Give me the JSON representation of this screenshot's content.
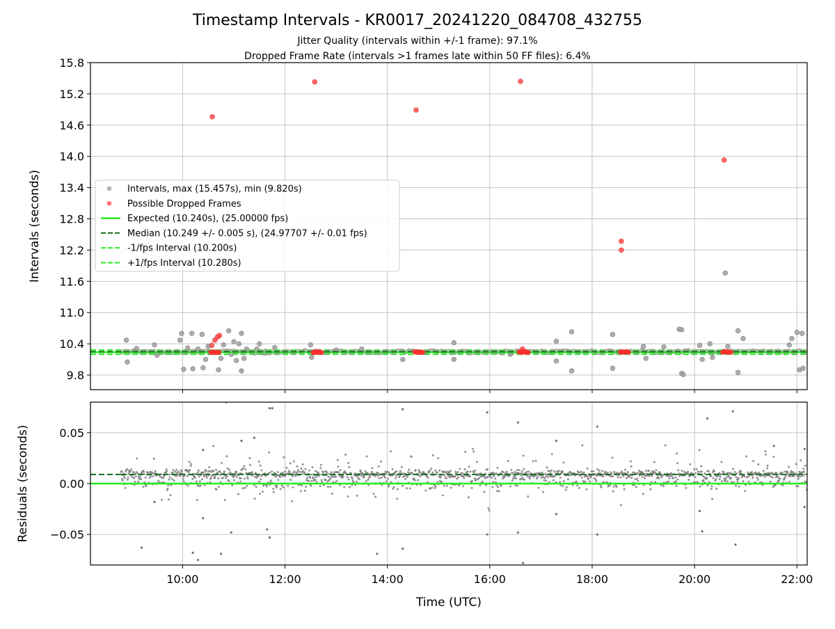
{
  "title": "Timestamp Intervals - KR0017_20241220_084708_432755",
  "subtitle_1": "Jitter Quality (intervals within +/-1 frame): 97.1%",
  "subtitle_2": "Dropped Frame Rate (intervals >1 frames late within 50 FF files): 6.4%",
  "colors": {
    "intervals": "#808080",
    "dropped": "#ff3030",
    "expected": "#22ee22",
    "median": "#1a6b1a",
    "bound": "#22ee22",
    "grid": "#b0b0b0"
  },
  "chart_data": [
    {
      "type": "scatter",
      "ylabel": "Intervals (seconds)",
      "xlim": [
        8.2,
        22.2
      ],
      "ylim": [
        9.52,
        15.8
      ],
      "yticks": [
        9.8,
        10.4,
        11.0,
        11.6,
        12.2,
        12.8,
        13.4,
        14.0,
        14.6,
        15.2,
        15.8
      ],
      "ytick_labels": [
        "9.8",
        "10.4",
        "11.0",
        "11.6",
        "12.2",
        "12.8",
        "13.4",
        "14.0",
        "14.6",
        "15.2",
        "15.8"
      ],
      "xticks": [
        10,
        12,
        14,
        16,
        18,
        20,
        22
      ],
      "grid": true,
      "legend_position": "center-left",
      "legend": [
        {
          "label": "Intervals, max (15.457s), min (9.820s)",
          "kind": "dot",
          "color": "#a0a0a0"
        },
        {
          "label": "Possible Dropped Frames",
          "kind": "dot",
          "color": "#ff5050"
        },
        {
          "label": "Expected (10.240s), (25.00000 fps)",
          "kind": "line",
          "color": "#22ee22"
        },
        {
          "label": "Median (10.249 +/- 0.005 s), (24.97707 +/- 0.01 fps)",
          "kind": "dash",
          "color": "#1a6b1a"
        },
        {
          "label": "-1/fps Interval (10.200s)",
          "kind": "dash",
          "color": "#22ee22"
        },
        {
          "label": "+1/fps Interval (10.280s)",
          "kind": "dash",
          "color": "#22ee22"
        }
      ],
      "lines": {
        "expected": 10.24,
        "median": 10.249,
        "lower": 10.2,
        "upper": 10.28
      },
      "dropped_points": [
        {
          "x": 10.58,
          "y": 14.76
        },
        {
          "x": 12.58,
          "y": 15.43
        },
        {
          "x": 14.56,
          "y": 14.89
        },
        {
          "x": 16.6,
          "y": 15.44
        },
        {
          "x": 18.57,
          "y": 12.37
        },
        {
          "x": 18.57,
          "y": 12.2
        },
        {
          "x": 20.58,
          "y": 13.93
        },
        {
          "x": 10.57,
          "y": 10.37
        },
        {
          "x": 10.63,
          "y": 10.47
        },
        {
          "x": 10.68,
          "y": 10.53
        },
        {
          "x": 10.72,
          "y": 10.56
        },
        {
          "x": 16.64,
          "y": 10.3
        }
      ],
      "dropped_clusters": [
        {
          "start": 10.55,
          "end": 10.72,
          "y": 10.24
        },
        {
          "start": 12.55,
          "end": 12.72,
          "y": 10.24
        },
        {
          "start": 14.53,
          "end": 14.7,
          "y": 10.24
        },
        {
          "start": 16.57,
          "end": 16.76,
          "y": 10.24
        },
        {
          "start": 18.55,
          "end": 18.72,
          "y": 10.24
        },
        {
          "start": 20.55,
          "end": 20.73,
          "y": 10.24
        }
      ],
      "interval_outliers": [
        {
          "x": 8.9,
          "y": 10.47
        },
        {
          "x": 8.92,
          "y": 10.05
        },
        {
          "x": 9.1,
          "y": 10.31
        },
        {
          "x": 9.45,
          "y": 10.38
        },
        {
          "x": 9.5,
          "y": 10.18
        },
        {
          "x": 9.95,
          "y": 10.47
        },
        {
          "x": 9.98,
          "y": 10.6
        },
        {
          "x": 10.02,
          "y": 9.91
        },
        {
          "x": 10.1,
          "y": 10.32
        },
        {
          "x": 10.18,
          "y": 10.6
        },
        {
          "x": 10.2,
          "y": 9.92
        },
        {
          "x": 10.3,
          "y": 10.3
        },
        {
          "x": 10.38,
          "y": 10.58
        },
        {
          "x": 10.4,
          "y": 9.94
        },
        {
          "x": 10.45,
          "y": 10.1
        },
        {
          "x": 10.5,
          "y": 10.35
        },
        {
          "x": 10.7,
          "y": 9.9
        },
        {
          "x": 10.75,
          "y": 10.12
        },
        {
          "x": 10.8,
          "y": 10.38
        },
        {
          "x": 10.9,
          "y": 10.65
        },
        {
          "x": 10.95,
          "y": 10.2
        },
        {
          "x": 11.0,
          "y": 10.44
        },
        {
          "x": 11.05,
          "y": 10.08
        },
        {
          "x": 11.1,
          "y": 10.4
        },
        {
          "x": 11.15,
          "y": 9.88
        },
        {
          "x": 11.15,
          "y": 10.6
        },
        {
          "x": 11.2,
          "y": 10.12
        },
        {
          "x": 11.25,
          "y": 10.3
        },
        {
          "x": 11.45,
          "y": 10.3
        },
        {
          "x": 11.5,
          "y": 10.4
        },
        {
          "x": 11.6,
          "y": 10.22
        },
        {
          "x": 11.8,
          "y": 10.33
        },
        {
          "x": 12.5,
          "y": 10.38
        },
        {
          "x": 12.52,
          "y": 10.14
        },
        {
          "x": 13.0,
          "y": 10.28
        },
        {
          "x": 13.5,
          "y": 10.3
        },
        {
          "x": 14.3,
          "y": 10.1
        },
        {
          "x": 15.3,
          "y": 10.42
        },
        {
          "x": 15.3,
          "y": 10.1
        },
        {
          "x": 16.4,
          "y": 10.2
        },
        {
          "x": 17.3,
          "y": 10.45
        },
        {
          "x": 17.3,
          "y": 10.07
        },
        {
          "x": 17.6,
          "y": 10.63
        },
        {
          "x": 17.6,
          "y": 9.88
        },
        {
          "x": 18.4,
          "y": 10.58
        },
        {
          "x": 18.4,
          "y": 9.93
        },
        {
          "x": 19.0,
          "y": 10.35
        },
        {
          "x": 19.05,
          "y": 10.12
        },
        {
          "x": 19.4,
          "y": 10.34
        },
        {
          "x": 19.7,
          "y": 10.68
        },
        {
          "x": 19.75,
          "y": 10.67
        },
        {
          "x": 19.75,
          "y": 9.83
        },
        {
          "x": 19.78,
          "y": 9.81
        },
        {
          "x": 20.1,
          "y": 10.37
        },
        {
          "x": 20.15,
          "y": 10.1
        },
        {
          "x": 20.3,
          "y": 10.4
        },
        {
          "x": 20.35,
          "y": 10.14
        },
        {
          "x": 20.6,
          "y": 11.76
        },
        {
          "x": 20.65,
          "y": 10.35
        },
        {
          "x": 20.85,
          "y": 10.65
        },
        {
          "x": 20.85,
          "y": 9.85
        },
        {
          "x": 20.95,
          "y": 10.5
        },
        {
          "x": 21.85,
          "y": 10.38
        },
        {
          "x": 21.9,
          "y": 10.5
        },
        {
          "x": 22.0,
          "y": 10.62
        },
        {
          "x": 22.05,
          "y": 9.9
        },
        {
          "x": 22.1,
          "y": 10.6
        },
        {
          "x": 22.12,
          "y": 9.93
        }
      ]
    },
    {
      "type": "scatter",
      "xlabel": "Time (UTC)",
      "ylabel": "Residuals (seconds)",
      "xlim": [
        8.2,
        22.2
      ],
      "ylim": [
        -0.08,
        0.08
      ],
      "yticks": [
        -0.05,
        0.0,
        0.05
      ],
      "ytick_labels": [
        "−0.05",
        "0.00",
        "0.05"
      ],
      "xticks": [
        10,
        12,
        14,
        16,
        18,
        20,
        22
      ],
      "xtick_labels": [
        "10:00",
        "12:00",
        "14:00",
        "16:00",
        "18:00",
        "20:00",
        "22:00"
      ],
      "grid": true,
      "lines": {
        "expected": 0.0,
        "median": 0.009
      },
      "data_start": 8.8,
      "data_end": 22.2,
      "band_center": 0.009,
      "band_halfwidth": 0.004,
      "residual_outliers": [
        {
          "x": 9.2,
          "y": -0.063
        },
        {
          "x": 9.45,
          "y": -0.018
        },
        {
          "x": 10.2,
          "y": -0.068
        },
        {
          "x": 10.3,
          "y": -0.075
        },
        {
          "x": 10.4,
          "y": -0.034
        },
        {
          "x": 10.4,
          "y": 0.033
        },
        {
          "x": 10.75,
          "y": -0.069
        },
        {
          "x": 10.95,
          "y": -0.048
        },
        {
          "x": 11.15,
          "y": 0.042
        },
        {
          "x": 11.4,
          "y": 0.045
        },
        {
          "x": 11.65,
          "y": -0.045
        },
        {
          "x": 11.7,
          "y": -0.053
        },
        {
          "x": 11.7,
          "y": 0.074
        },
        {
          "x": 11.75,
          "y": 0.074
        },
        {
          "x": 13.8,
          "y": -0.069
        },
        {
          "x": 14.3,
          "y": -0.064
        },
        {
          "x": 14.3,
          "y": 0.073
        },
        {
          "x": 15.95,
          "y": -0.05
        },
        {
          "x": 15.95,
          "y": 0.07
        },
        {
          "x": 16.55,
          "y": -0.048
        },
        {
          "x": 16.55,
          "y": 0.06
        },
        {
          "x": 16.65,
          "y": -0.078
        },
        {
          "x": 17.3,
          "y": -0.03
        },
        {
          "x": 17.3,
          "y": 0.042
        },
        {
          "x": 18.1,
          "y": -0.05
        },
        {
          "x": 18.1,
          "y": 0.056
        },
        {
          "x": 20.1,
          "y": -0.027
        },
        {
          "x": 20.15,
          "y": -0.047
        },
        {
          "x": 20.25,
          "y": 0.064
        },
        {
          "x": 20.75,
          "y": 0.071
        },
        {
          "x": 20.8,
          "y": -0.06
        },
        {
          "x": 21.55,
          "y": 0.037
        },
        {
          "x": 22.15,
          "y": -0.023
        },
        {
          "x": 22.15,
          "y": 0.034
        },
        {
          "x": 10.85,
          "y": 0.08
        }
      ]
    }
  ]
}
